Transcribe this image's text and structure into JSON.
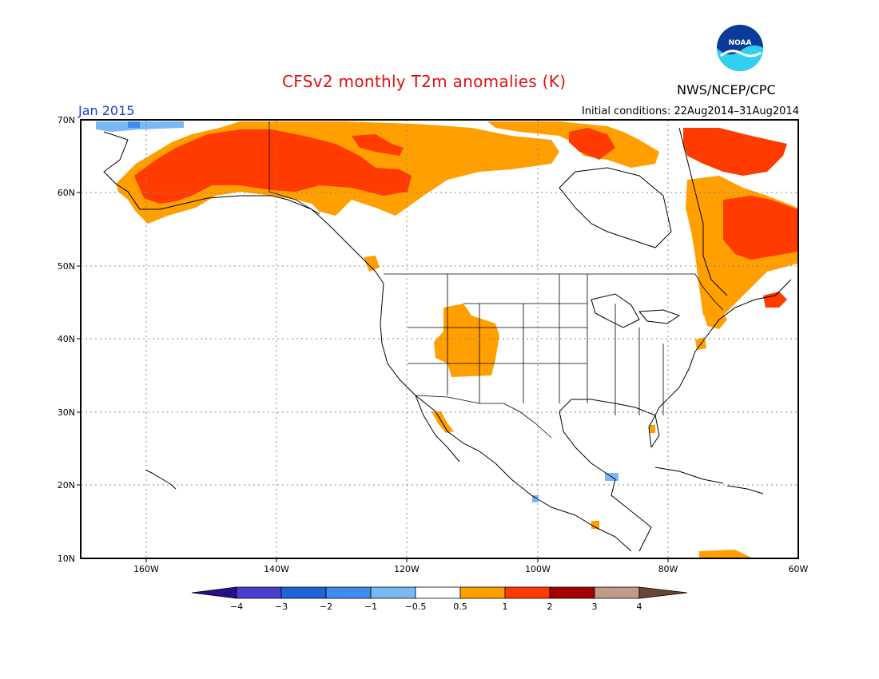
{
  "header": {
    "title": "CFSv2 monthly T2m anomalies (K)",
    "agency": "NWS/NCEP/CPC",
    "valid_month": "Jan 2015",
    "initial_conditions": "Initial conditions: 22Aug2014–31Aug2014",
    "logo_text": "NOAA"
  },
  "map": {
    "lat_labels": [
      "70N",
      "60N",
      "50N",
      "40N",
      "30N",
      "20N",
      "10N"
    ],
    "lon_labels": [
      "160W",
      "140W",
      "120W",
      "100W",
      "80W",
      "60W"
    ],
    "lat_values": [
      70,
      60,
      50,
      40,
      30,
      20,
      10
    ],
    "lon_values": [
      -160,
      -140,
      -120,
      -100,
      -80,
      -60
    ],
    "extent": {
      "lon_min": -170,
      "lon_max": -60,
      "lat_min": 10,
      "lat_max": 70
    },
    "grid": "dotted"
  },
  "colorbar": {
    "labels": [
      "−4",
      "−3",
      "−2",
      "−1",
      "−0.5",
      "0.5",
      "1",
      "2",
      "3",
      "4"
    ],
    "colors": [
      "#2a0c8c",
      "#4a3fcf",
      "#1f63d6",
      "#3d8df0",
      "#7ab8f4",
      "#ffffff",
      "#ff9f00",
      "#ff3b00",
      "#a50000",
      "#c29a88",
      "#6b4433"
    ]
  },
  "colors": {
    "orange": "#ff9f00",
    "red": "#ff3b00",
    "light_blue": "#7ab8f4",
    "mid_blue": "#3d8df0",
    "title": "#e01010",
    "date": "#1a3cd8"
  }
}
